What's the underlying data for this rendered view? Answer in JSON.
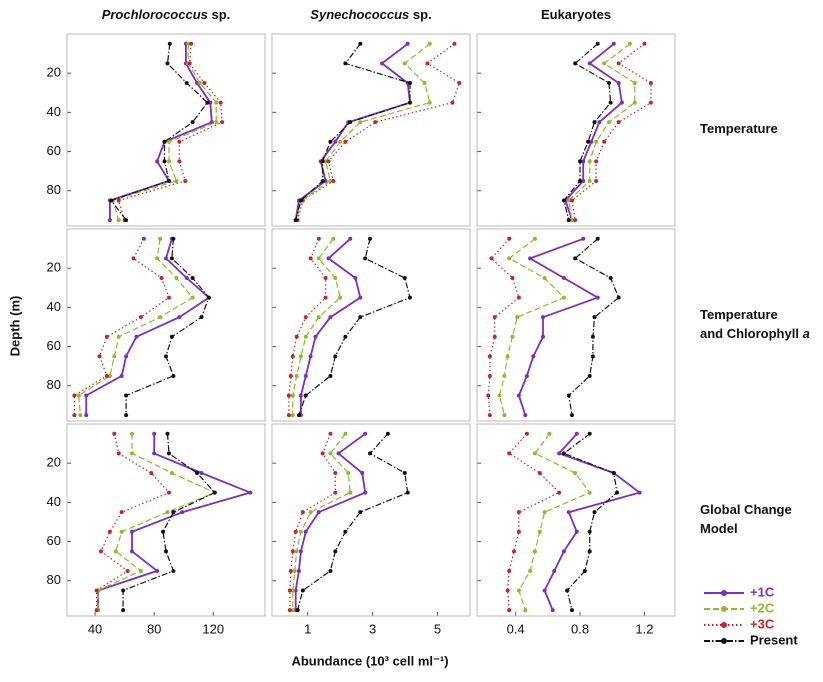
{
  "figure": {
    "y_label": "Depth (m)",
    "x_label": "Abundance (10³ cell ml⁻¹)",
    "ylim": [
      0,
      98
    ],
    "depth": [
      5,
      15,
      25,
      35,
      45,
      55,
      65,
      75,
      85,
      95
    ],
    "columns": [
      {
        "title_italic": "Prochlorococcus",
        "title": " sp.",
        "xlim": [
          21,
          155
        ],
        "xticks": [
          40,
          80,
          120
        ]
      },
      {
        "title_italic": "Synechococcus",
        "title": " sp.",
        "xlim": [
          -0.1,
          6
        ],
        "xticks": [
          1,
          3,
          5
        ]
      },
      {
        "title": "Eukaryotes",
        "xlim": [
          0.16,
          1.39
        ],
        "xticks": [
          0.4,
          0.8,
          1.2
        ]
      }
    ],
    "rows": [
      {
        "label": [
          "Temperature"
        ],
        "yticks": [
          20,
          40,
          60,
          80
        ]
      },
      {
        "label": [
          "Temperature",
          " and Chlorophyll "
        ],
        "label_italic": "a",
        "yticks": [
          20,
          40,
          60,
          80
        ]
      },
      {
        "label": [
          "Global Change",
          "Model"
        ],
        "yticks": [
          20,
          40,
          60,
          80
        ]
      }
    ],
    "legend": [
      {
        "name": "+1C",
        "color": "#7b2fbe",
        "dash": "solid"
      },
      {
        "name": "+2C",
        "color": "#8dbb2c",
        "dash": "dashed"
      },
      {
        "name": "+3C",
        "color": "#c3262c",
        "dash": "dotted"
      },
      {
        "name": "Present",
        "color": "#111111",
        "dash": "dashdot"
      }
    ]
  },
  "chart_data": [
    {
      "type": "line",
      "series": [
        {
          "values": [
            101.5,
            101.5,
            109,
            118,
            119,
            87,
            82,
            90,
            50,
            50
          ]
        },
        {
          "values": [
            103,
            103,
            111,
            122,
            122,
            90,
            90,
            95,
            52,
            56
          ]
        },
        {
          "values": [
            105,
            104,
            114,
            125,
            126,
            97,
            97,
            101,
            56,
            60
          ]
        },
        {
          "values": [
            90.6,
            89,
            102,
            116,
            106,
            87,
            87,
            90,
            51,
            61
          ]
        }
      ]
    },
    {
      "type": "line",
      "series": [
        {
          "values": [
            4.08,
            3.29,
            4.08,
            4.15,
            2.25,
            1.85,
            1.4,
            1.55,
            0.73,
            0.63
          ]
        },
        {
          "values": [
            4.76,
            3.99,
            4.6,
            4.76,
            2.62,
            2.0,
            1.55,
            1.7,
            0.79,
            0.66
          ]
        },
        {
          "values": [
            5.52,
            4.69,
            5.67,
            5.46,
            3.08,
            2.16,
            1.64,
            1.79,
            0.85,
            0.69
          ]
        },
        {
          "values": [
            2.62,
            2.16,
            4.15,
            4.15,
            2.31,
            1.7,
            1.46,
            1.46,
            0.79,
            0.63
          ]
        }
      ]
    },
    {
      "type": "line",
      "series": [
        {
          "values": [
            1.01,
            0.86,
            1.04,
            1.06,
            0.92,
            0.87,
            0.82,
            0.82,
            0.71,
            0.75
          ]
        },
        {
          "values": [
            1.11,
            0.95,
            1.14,
            1.14,
            0.98,
            0.9,
            0.86,
            0.86,
            0.73,
            0.75
          ]
        },
        {
          "values": [
            1.2,
            1.04,
            1.24,
            1.24,
            1.04,
            0.95,
            0.9,
            0.9,
            0.75,
            0.77
          ]
        },
        {
          "values": [
            0.91,
            0.77,
            0.98,
            0.99,
            0.89,
            0.85,
            0.8,
            0.8,
            0.7,
            0.73
          ]
        }
      ]
    },
    {
      "type": "line",
      "series": [
        {
          "values": [
            92,
            88,
            102,
            117,
            97,
            68,
            61,
            58,
            34,
            34
          ]
        },
        {
          "values": [
            84,
            82,
            95,
            106,
            84,
            56,
            53,
            50,
            29,
            30
          ]
        },
        {
          "values": [
            73,
            66,
            85,
            90,
            71,
            48,
            43,
            48,
            26,
            26
          ]
        },
        {
          "values": [
            93,
            92,
            106,
            117,
            112,
            92,
            88,
            93,
            61,
            61
          ]
        }
      ]
    },
    {
      "type": "line",
      "series": [
        {
          "values": [
            2.31,
            1.64,
            2.47,
            2.62,
            1.7,
            1.24,
            1.09,
            0.94,
            0.79,
            0.79
          ]
        },
        {
          "values": [
            1.79,
            1.34,
            1.85,
            2.0,
            1.34,
            0.94,
            0.79,
            0.66,
            0.54,
            0.54
          ]
        },
        {
          "values": [
            1.34,
            1.09,
            1.55,
            1.55,
            0.94,
            0.66,
            0.54,
            0.48,
            0.42,
            0.42
          ]
        },
        {
          "values": [
            2.92,
            2.77,
            3.99,
            4.15,
            2.62,
            2.16,
            1.85,
            1.7,
            0.94,
            0.73
          ]
        }
      ]
    },
    {
      "type": "line",
      "series": [
        {
          "values": [
            0.82,
            0.49,
            0.7,
            0.91,
            0.57,
            0.57,
            0.51,
            0.47,
            0.42,
            0.46
          ]
        },
        {
          "values": [
            0.52,
            0.36,
            0.58,
            0.7,
            0.41,
            0.38,
            0.35,
            0.33,
            0.3,
            0.33
          ]
        },
        {
          "values": [
            0.36,
            0.25,
            0.38,
            0.42,
            0.27,
            0.27,
            0.24,
            0.24,
            0.23,
            0.24
          ]
        },
        {
          "values": [
            0.91,
            0.77,
            0.99,
            1.04,
            0.89,
            0.88,
            0.88,
            0.86,
            0.73,
            0.75
          ]
        }
      ]
    },
    {
      "type": "line",
      "series": [
        {
          "values": [
            80,
            80,
            112,
            145,
            99,
            65,
            65,
            82,
            42,
            42
          ]
        },
        {
          "values": [
            65,
            65,
            92,
            121,
            89,
            58,
            54,
            71,
            42,
            42
          ]
        },
        {
          "values": [
            53,
            56,
            78,
            90,
            58,
            50,
            44,
            62,
            41,
            41
          ]
        },
        {
          "values": [
            89,
            90,
            109,
            121,
            93,
            86,
            88,
            93,
            59,
            59
          ]
        }
      ]
    },
    {
      "type": "line",
      "series": [
        {
          "values": [
            2.77,
            1.95,
            2.68,
            2.77,
            1.34,
            0.94,
            0.79,
            0.73,
            0.63,
            0.63
          ]
        },
        {
          "values": [
            2.16,
            1.7,
            2.25,
            2.31,
            1.09,
            0.79,
            0.66,
            0.6,
            0.54,
            0.54
          ]
        },
        {
          "values": [
            1.7,
            1.46,
            1.85,
            1.85,
            0.85,
            0.63,
            0.54,
            0.48,
            0.45,
            0.45
          ]
        },
        {
          "values": [
            3.47,
            2.92,
            3.99,
            4.08,
            2.62,
            2.16,
            1.85,
            1.7,
            0.85,
            0.69
          ]
        }
      ]
    },
    {
      "type": "line",
      "series": [
        {
          "values": [
            0.78,
            0.67,
            1.01,
            1.17,
            0.73,
            0.78,
            0.7,
            0.64,
            0.58,
            0.63
          ]
        },
        {
          "values": [
            0.61,
            0.52,
            0.77,
            0.86,
            0.58,
            0.55,
            0.52,
            0.49,
            0.42,
            0.46
          ]
        },
        {
          "values": [
            0.47,
            0.36,
            0.55,
            0.67,
            0.42,
            0.42,
            0.39,
            0.36,
            0.35,
            0.36
          ]
        },
        {
          "values": [
            0.86,
            0.7,
            1.01,
            1.03,
            0.89,
            0.86,
            0.86,
            0.83,
            0.72,
            0.75
          ]
        }
      ]
    }
  ]
}
